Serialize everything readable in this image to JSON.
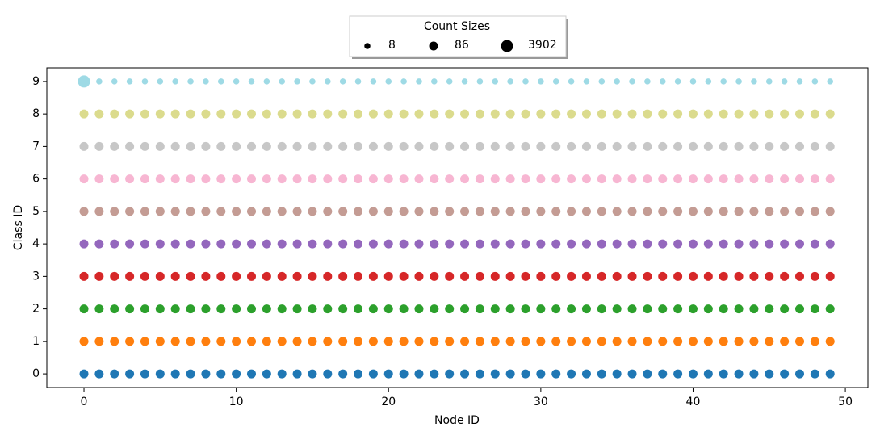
{
  "chart_data": {
    "type": "scatter",
    "xlabel": "Node ID",
    "ylabel": "Class ID",
    "xlim": [
      -2.44,
      51.48
    ],
    "xticks": [
      0,
      10,
      20,
      30,
      40,
      50
    ],
    "ylim": [
      -0.42,
      9.42
    ],
    "yticks": [
      0,
      1,
      2,
      3,
      4,
      5,
      6,
      7,
      8,
      9
    ],
    "size_legend": {
      "title": "Count Sizes",
      "values": [
        8,
        86,
        3902
      ]
    },
    "x": [
      0,
      1,
      2,
      3,
      4,
      5,
      6,
      7,
      8,
      9,
      10,
      11,
      12,
      13,
      14,
      15,
      16,
      17,
      18,
      19,
      20,
      21,
      22,
      23,
      24,
      25,
      26,
      27,
      28,
      29,
      30,
      31,
      32,
      33,
      34,
      35,
      36,
      37,
      38,
      39,
      40,
      41,
      42,
      43,
      44,
      45,
      46,
      47,
      48,
      49
    ],
    "series": [
      {
        "color": "#1f77b4",
        "values": [
          0,
          0,
          0,
          0,
          0,
          0,
          0,
          0,
          0,
          0,
          0,
          0,
          0,
          0,
          0,
          0,
          0,
          0,
          0,
          0,
          0,
          0,
          0,
          0,
          0,
          0,
          0,
          0,
          0,
          0,
          0,
          0,
          0,
          0,
          0,
          0,
          0,
          0,
          0,
          0,
          0,
          0,
          0,
          0,
          0,
          0,
          0,
          0,
          0,
          0
        ],
        "sizes": [
          86,
          86,
          86,
          86,
          86,
          86,
          86,
          86,
          86,
          86,
          86,
          86,
          86,
          86,
          86,
          86,
          86,
          86,
          86,
          86,
          86,
          86,
          86,
          86,
          86,
          86,
          86,
          86,
          86,
          86,
          86,
          86,
          86,
          86,
          86,
          86,
          86,
          86,
          86,
          86,
          86,
          86,
          86,
          86,
          86,
          86,
          86,
          86,
          86,
          86
        ]
      },
      {
        "color": "#ff7f0e",
        "values": [
          1,
          1,
          1,
          1,
          1,
          1,
          1,
          1,
          1,
          1,
          1,
          1,
          1,
          1,
          1,
          1,
          1,
          1,
          1,
          1,
          1,
          1,
          1,
          1,
          1,
          1,
          1,
          1,
          1,
          1,
          1,
          1,
          1,
          1,
          1,
          1,
          1,
          1,
          1,
          1,
          1,
          1,
          1,
          1,
          1,
          1,
          1,
          1,
          1,
          1
        ],
        "sizes": [
          86,
          86,
          86,
          86,
          86,
          86,
          86,
          86,
          86,
          86,
          86,
          86,
          86,
          86,
          86,
          86,
          86,
          86,
          86,
          86,
          86,
          86,
          86,
          86,
          86,
          86,
          86,
          86,
          86,
          86,
          86,
          86,
          86,
          86,
          86,
          86,
          86,
          86,
          86,
          86,
          86,
          86,
          86,
          86,
          86,
          86,
          86,
          86,
          86,
          86
        ]
      },
      {
        "color": "#2ca02c",
        "values": [
          2,
          2,
          2,
          2,
          2,
          2,
          2,
          2,
          2,
          2,
          2,
          2,
          2,
          2,
          2,
          2,
          2,
          2,
          2,
          2,
          2,
          2,
          2,
          2,
          2,
          2,
          2,
          2,
          2,
          2,
          2,
          2,
          2,
          2,
          2,
          2,
          2,
          2,
          2,
          2,
          2,
          2,
          2,
          2,
          2,
          2,
          2,
          2,
          2,
          2
        ],
        "sizes": [
          86,
          86,
          86,
          86,
          86,
          86,
          86,
          86,
          86,
          86,
          86,
          86,
          86,
          86,
          86,
          86,
          86,
          86,
          86,
          86,
          86,
          86,
          86,
          86,
          86,
          86,
          86,
          86,
          86,
          86,
          86,
          86,
          86,
          86,
          86,
          86,
          86,
          86,
          86,
          86,
          86,
          86,
          86,
          86,
          86,
          86,
          86,
          86,
          86,
          86
        ]
      },
      {
        "color": "#d62728",
        "values": [
          3,
          3,
          3,
          3,
          3,
          3,
          3,
          3,
          3,
          3,
          3,
          3,
          3,
          3,
          3,
          3,
          3,
          3,
          3,
          3,
          3,
          3,
          3,
          3,
          3,
          3,
          3,
          3,
          3,
          3,
          3,
          3,
          3,
          3,
          3,
          3,
          3,
          3,
          3,
          3,
          3,
          3,
          3,
          3,
          3,
          3,
          3,
          3,
          3,
          3
        ],
        "sizes": [
          86,
          86,
          86,
          86,
          86,
          86,
          86,
          86,
          86,
          86,
          86,
          86,
          86,
          86,
          86,
          86,
          86,
          86,
          86,
          86,
          86,
          86,
          86,
          86,
          86,
          86,
          86,
          86,
          86,
          86,
          86,
          86,
          86,
          86,
          86,
          86,
          86,
          86,
          86,
          86,
          86,
          86,
          86,
          86,
          86,
          86,
          86,
          86,
          86,
          86
        ]
      },
      {
        "color": "#9467bd",
        "values": [
          4,
          4,
          4,
          4,
          4,
          4,
          4,
          4,
          4,
          4,
          4,
          4,
          4,
          4,
          4,
          4,
          4,
          4,
          4,
          4,
          4,
          4,
          4,
          4,
          4,
          4,
          4,
          4,
          4,
          4,
          4,
          4,
          4,
          4,
          4,
          4,
          4,
          4,
          4,
          4,
          4,
          4,
          4,
          4,
          4,
          4,
          4,
          4,
          4,
          4
        ],
        "sizes": [
          86,
          86,
          86,
          86,
          86,
          86,
          86,
          86,
          86,
          86,
          86,
          86,
          86,
          86,
          86,
          86,
          86,
          86,
          86,
          86,
          86,
          86,
          86,
          86,
          86,
          86,
          86,
          86,
          86,
          86,
          86,
          86,
          86,
          86,
          86,
          86,
          86,
          86,
          86,
          86,
          86,
          86,
          86,
          86,
          86,
          86,
          86,
          86,
          86,
          86
        ]
      },
      {
        "color": "#c49c94",
        "values": [
          5,
          5,
          5,
          5,
          5,
          5,
          5,
          5,
          5,
          5,
          5,
          5,
          5,
          5,
          5,
          5,
          5,
          5,
          5,
          5,
          5,
          5,
          5,
          5,
          5,
          5,
          5,
          5,
          5,
          5,
          5,
          5,
          5,
          5,
          5,
          5,
          5,
          5,
          5,
          5,
          5,
          5,
          5,
          5,
          5,
          5,
          5,
          5,
          5,
          5
        ],
        "sizes": [
          86,
          86,
          86,
          86,
          86,
          86,
          86,
          86,
          86,
          86,
          86,
          86,
          86,
          86,
          86,
          86,
          86,
          86,
          86,
          86,
          86,
          86,
          86,
          86,
          86,
          86,
          86,
          86,
          86,
          86,
          86,
          86,
          86,
          86,
          86,
          86,
          86,
          86,
          86,
          86,
          86,
          86,
          86,
          86,
          86,
          86,
          86,
          86,
          86,
          86
        ]
      },
      {
        "color": "#f7b6d2",
        "values": [
          6,
          6,
          6,
          6,
          6,
          6,
          6,
          6,
          6,
          6,
          6,
          6,
          6,
          6,
          6,
          6,
          6,
          6,
          6,
          6,
          6,
          6,
          6,
          6,
          6,
          6,
          6,
          6,
          6,
          6,
          6,
          6,
          6,
          6,
          6,
          6,
          6,
          6,
          6,
          6,
          6,
          6,
          6,
          6,
          6,
          6,
          6,
          6,
          6,
          6
        ],
        "sizes": [
          86,
          86,
          86,
          86,
          86,
          86,
          86,
          86,
          86,
          86,
          86,
          86,
          86,
          86,
          86,
          86,
          86,
          86,
          86,
          86,
          86,
          86,
          86,
          86,
          86,
          86,
          86,
          86,
          86,
          86,
          86,
          86,
          86,
          86,
          86,
          86,
          86,
          86,
          86,
          86,
          86,
          86,
          86,
          86,
          86,
          86,
          86,
          86,
          86,
          86
        ]
      },
      {
        "color": "#c7c7c7",
        "values": [
          7,
          7,
          7,
          7,
          7,
          7,
          7,
          7,
          7,
          7,
          7,
          7,
          7,
          7,
          7,
          7,
          7,
          7,
          7,
          7,
          7,
          7,
          7,
          7,
          7,
          7,
          7,
          7,
          7,
          7,
          7,
          7,
          7,
          7,
          7,
          7,
          7,
          7,
          7,
          7,
          7,
          7,
          7,
          7,
          7,
          7,
          7,
          7,
          7,
          7
        ],
        "sizes": [
          86,
          86,
          86,
          86,
          86,
          86,
          86,
          86,
          86,
          86,
          86,
          86,
          86,
          86,
          86,
          86,
          86,
          86,
          86,
          86,
          86,
          86,
          86,
          86,
          86,
          86,
          86,
          86,
          86,
          86,
          86,
          86,
          86,
          86,
          86,
          86,
          86,
          86,
          86,
          86,
          86,
          86,
          86,
          86,
          86,
          86,
          86,
          86,
          86,
          86
        ]
      },
      {
        "color": "#dbdb8d",
        "values": [
          8,
          8,
          8,
          8,
          8,
          8,
          8,
          8,
          8,
          8,
          8,
          8,
          8,
          8,
          8,
          8,
          8,
          8,
          8,
          8,
          8,
          8,
          8,
          8,
          8,
          8,
          8,
          8,
          8,
          8,
          8,
          8,
          8,
          8,
          8,
          8,
          8,
          8,
          8,
          8,
          8,
          8,
          8,
          8,
          8,
          8,
          8,
          8,
          8,
          8
        ],
        "sizes": [
          86,
          86,
          86,
          86,
          86,
          86,
          86,
          86,
          86,
          86,
          86,
          86,
          86,
          86,
          86,
          86,
          86,
          86,
          86,
          86,
          86,
          86,
          86,
          86,
          86,
          86,
          86,
          86,
          86,
          86,
          86,
          86,
          86,
          86,
          86,
          86,
          86,
          86,
          86,
          86,
          86,
          86,
          86,
          86,
          86,
          86,
          86,
          86,
          86,
          86
        ]
      },
      {
        "color": "#9edae5",
        "values": [
          9,
          9,
          9,
          9,
          9,
          9,
          9,
          9,
          9,
          9,
          9,
          9,
          9,
          9,
          9,
          9,
          9,
          9,
          9,
          9,
          9,
          9,
          9,
          9,
          9,
          9,
          9,
          9,
          9,
          9,
          9,
          9,
          9,
          9,
          9,
          9,
          9,
          9,
          9,
          9,
          9,
          9,
          9,
          9,
          9,
          9,
          9,
          9,
          9,
          9
        ],
        "sizes": [
          3902,
          8,
          8,
          8,
          8,
          8,
          8,
          8,
          8,
          8,
          8,
          8,
          8,
          8,
          8,
          8,
          8,
          8,
          8,
          8,
          8,
          8,
          8,
          8,
          8,
          8,
          8,
          8,
          8,
          8,
          8,
          8,
          8,
          8,
          8,
          8,
          8,
          8,
          8,
          8,
          8,
          8,
          8,
          8,
          8,
          8,
          8,
          8,
          8,
          8
        ]
      }
    ]
  }
}
